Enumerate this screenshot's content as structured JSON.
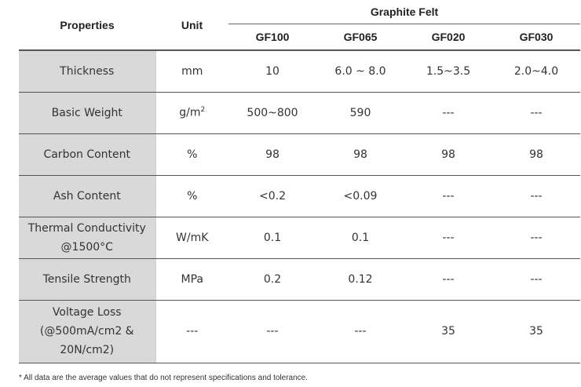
{
  "header": {
    "properties": "Properties",
    "unit": "Unit",
    "group": "Graphite Felt",
    "grades": [
      "GF100",
      "GF065",
      "GF020",
      "GF030"
    ]
  },
  "rows": [
    {
      "property": "Thickness",
      "unit": "mm",
      "values": [
        "10",
        "6.0 ~ 8.0",
        "1.5~3.5",
        "2.0~4.0"
      ]
    },
    {
      "property": "Basic Weight",
      "unit_base": "g/m",
      "unit_sup": "2",
      "values": [
        "500~800",
        "590",
        "---",
        "---"
      ]
    },
    {
      "property": "Carbon Content",
      "unit": "%",
      "values": [
        "98",
        "98",
        "98",
        "98"
      ]
    },
    {
      "property": "Ash Content",
      "unit": "%",
      "values": [
        "<0.2",
        "<0.09",
        "---",
        "---"
      ]
    },
    {
      "property_lines": [
        "Thermal Conductivity",
        "@1500°C"
      ],
      "unit": "W/mK",
      "values": [
        "0.1",
        "0.1",
        "---",
        "---"
      ]
    },
    {
      "property": "Tensile Strength",
      "unit": "MPa",
      "values": [
        "0.2",
        "0.12",
        "---",
        "---"
      ]
    },
    {
      "property_lines": [
        "Voltage Loss",
        "(@500mA/cm2 &",
        "20N/cm2)"
      ],
      "unit": "---",
      "values": [
        "---",
        "---",
        "35",
        "35"
      ]
    }
  ],
  "footnote": "* All data are the average values that do not represent specifications and tolerance."
}
